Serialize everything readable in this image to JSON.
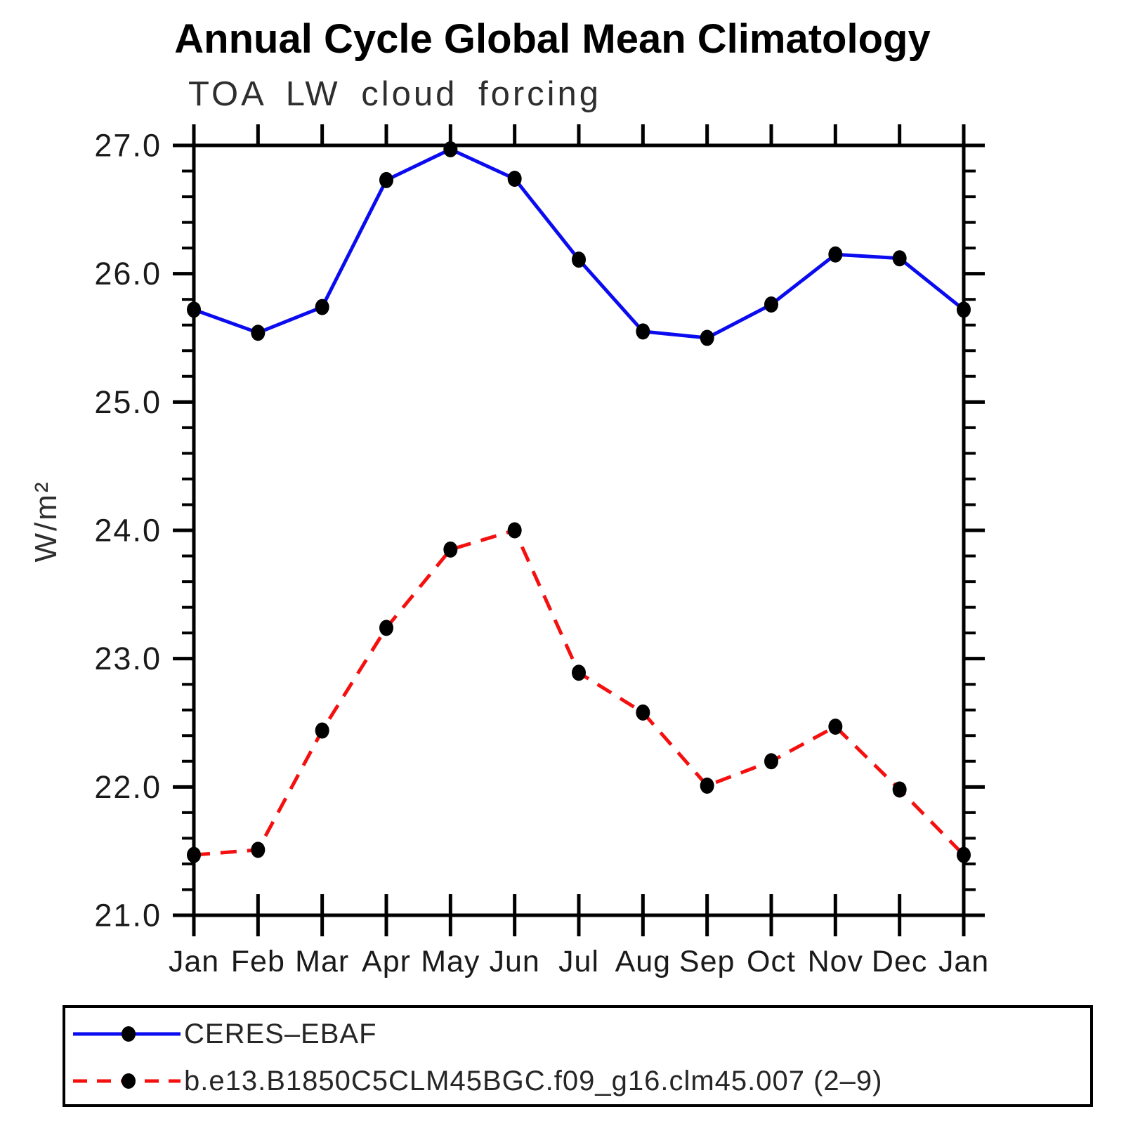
{
  "chart_data": {
    "type": "line",
    "title": "Annual Cycle Global Mean Climatology",
    "subtitle": "TOA LW cloud forcing",
    "ylabel": "W/m²",
    "xlabel": "",
    "categories": [
      "Jan",
      "Feb",
      "Mar",
      "Apr",
      "May",
      "Jun",
      "Jul",
      "Aug",
      "Sep",
      "Oct",
      "Nov",
      "Dec",
      "Jan"
    ],
    "ylim": [
      21.0,
      27.0
    ],
    "y_major_step": 1.0,
    "y_minor_step": 0.2,
    "y_tick_labels": [
      "21.0",
      "22.0",
      "23.0",
      "24.0",
      "25.0",
      "26.0",
      "27.0"
    ],
    "grid": false,
    "legend_position": "bottom",
    "frame_color": "#000000",
    "tick_label_color": "#1a1a1a",
    "series": [
      {
        "name": "CERES–EBAF",
        "color": "#0b0bf0",
        "style": "solid",
        "marker": "filled-circle",
        "marker_color": "#000000",
        "values": [
          25.72,
          25.54,
          25.74,
          26.73,
          26.97,
          26.74,
          26.11,
          25.55,
          25.5,
          25.76,
          26.15,
          26.12,
          25.72
        ]
      },
      {
        "name": "b.e13.B1850C5CLM45BGC.f09_g16.clm45.007 (2–9)",
        "color": "#f50f0f",
        "style": "dashed",
        "marker": "filled-circle",
        "marker_color": "#000000",
        "values": [
          21.47,
          21.51,
          22.44,
          23.24,
          23.85,
          24.0,
          22.89,
          22.58,
          22.01,
          22.2,
          22.47,
          21.98,
          21.47
        ]
      }
    ]
  }
}
